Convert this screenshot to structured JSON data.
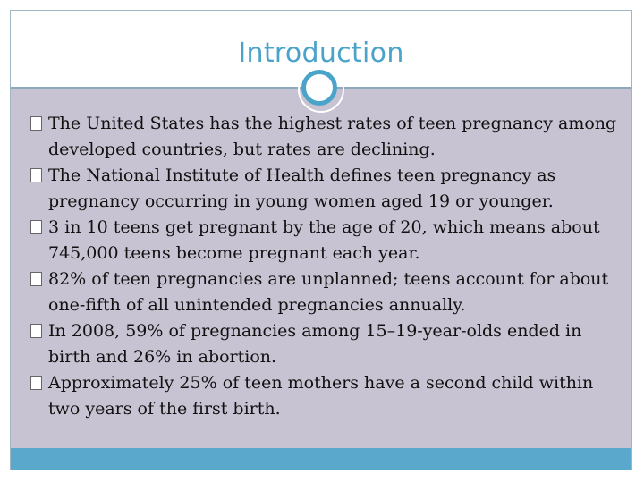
{
  "slide": {
    "title": "Introduction",
    "bullets": [
      "The United States has the highest rates of teen pregnancy among developed countries, but rates are declining.",
      "The National Institute of Health defines teen pregnancy as pregnancy occurring in young women aged 19 or younger.",
      "3 in 10 teens get pregnant by the age of 20, which means about 745,000 teens become pregnant each year.",
      "82% of teen pregnancies are unplanned; teens account for about one-fifth of all unintended pregnancies annually.",
      "In 2008, 59% of pregnancies among 15–19-year-olds ended in birth and 26% in abortion.",
      "Approximately 25% of teen mothers have a second child within two years of the first birth."
    ]
  },
  "colors": {
    "accent": "#4aa3c8",
    "content_bg": "#c8c3d2",
    "footer": "#5aa9cc"
  }
}
